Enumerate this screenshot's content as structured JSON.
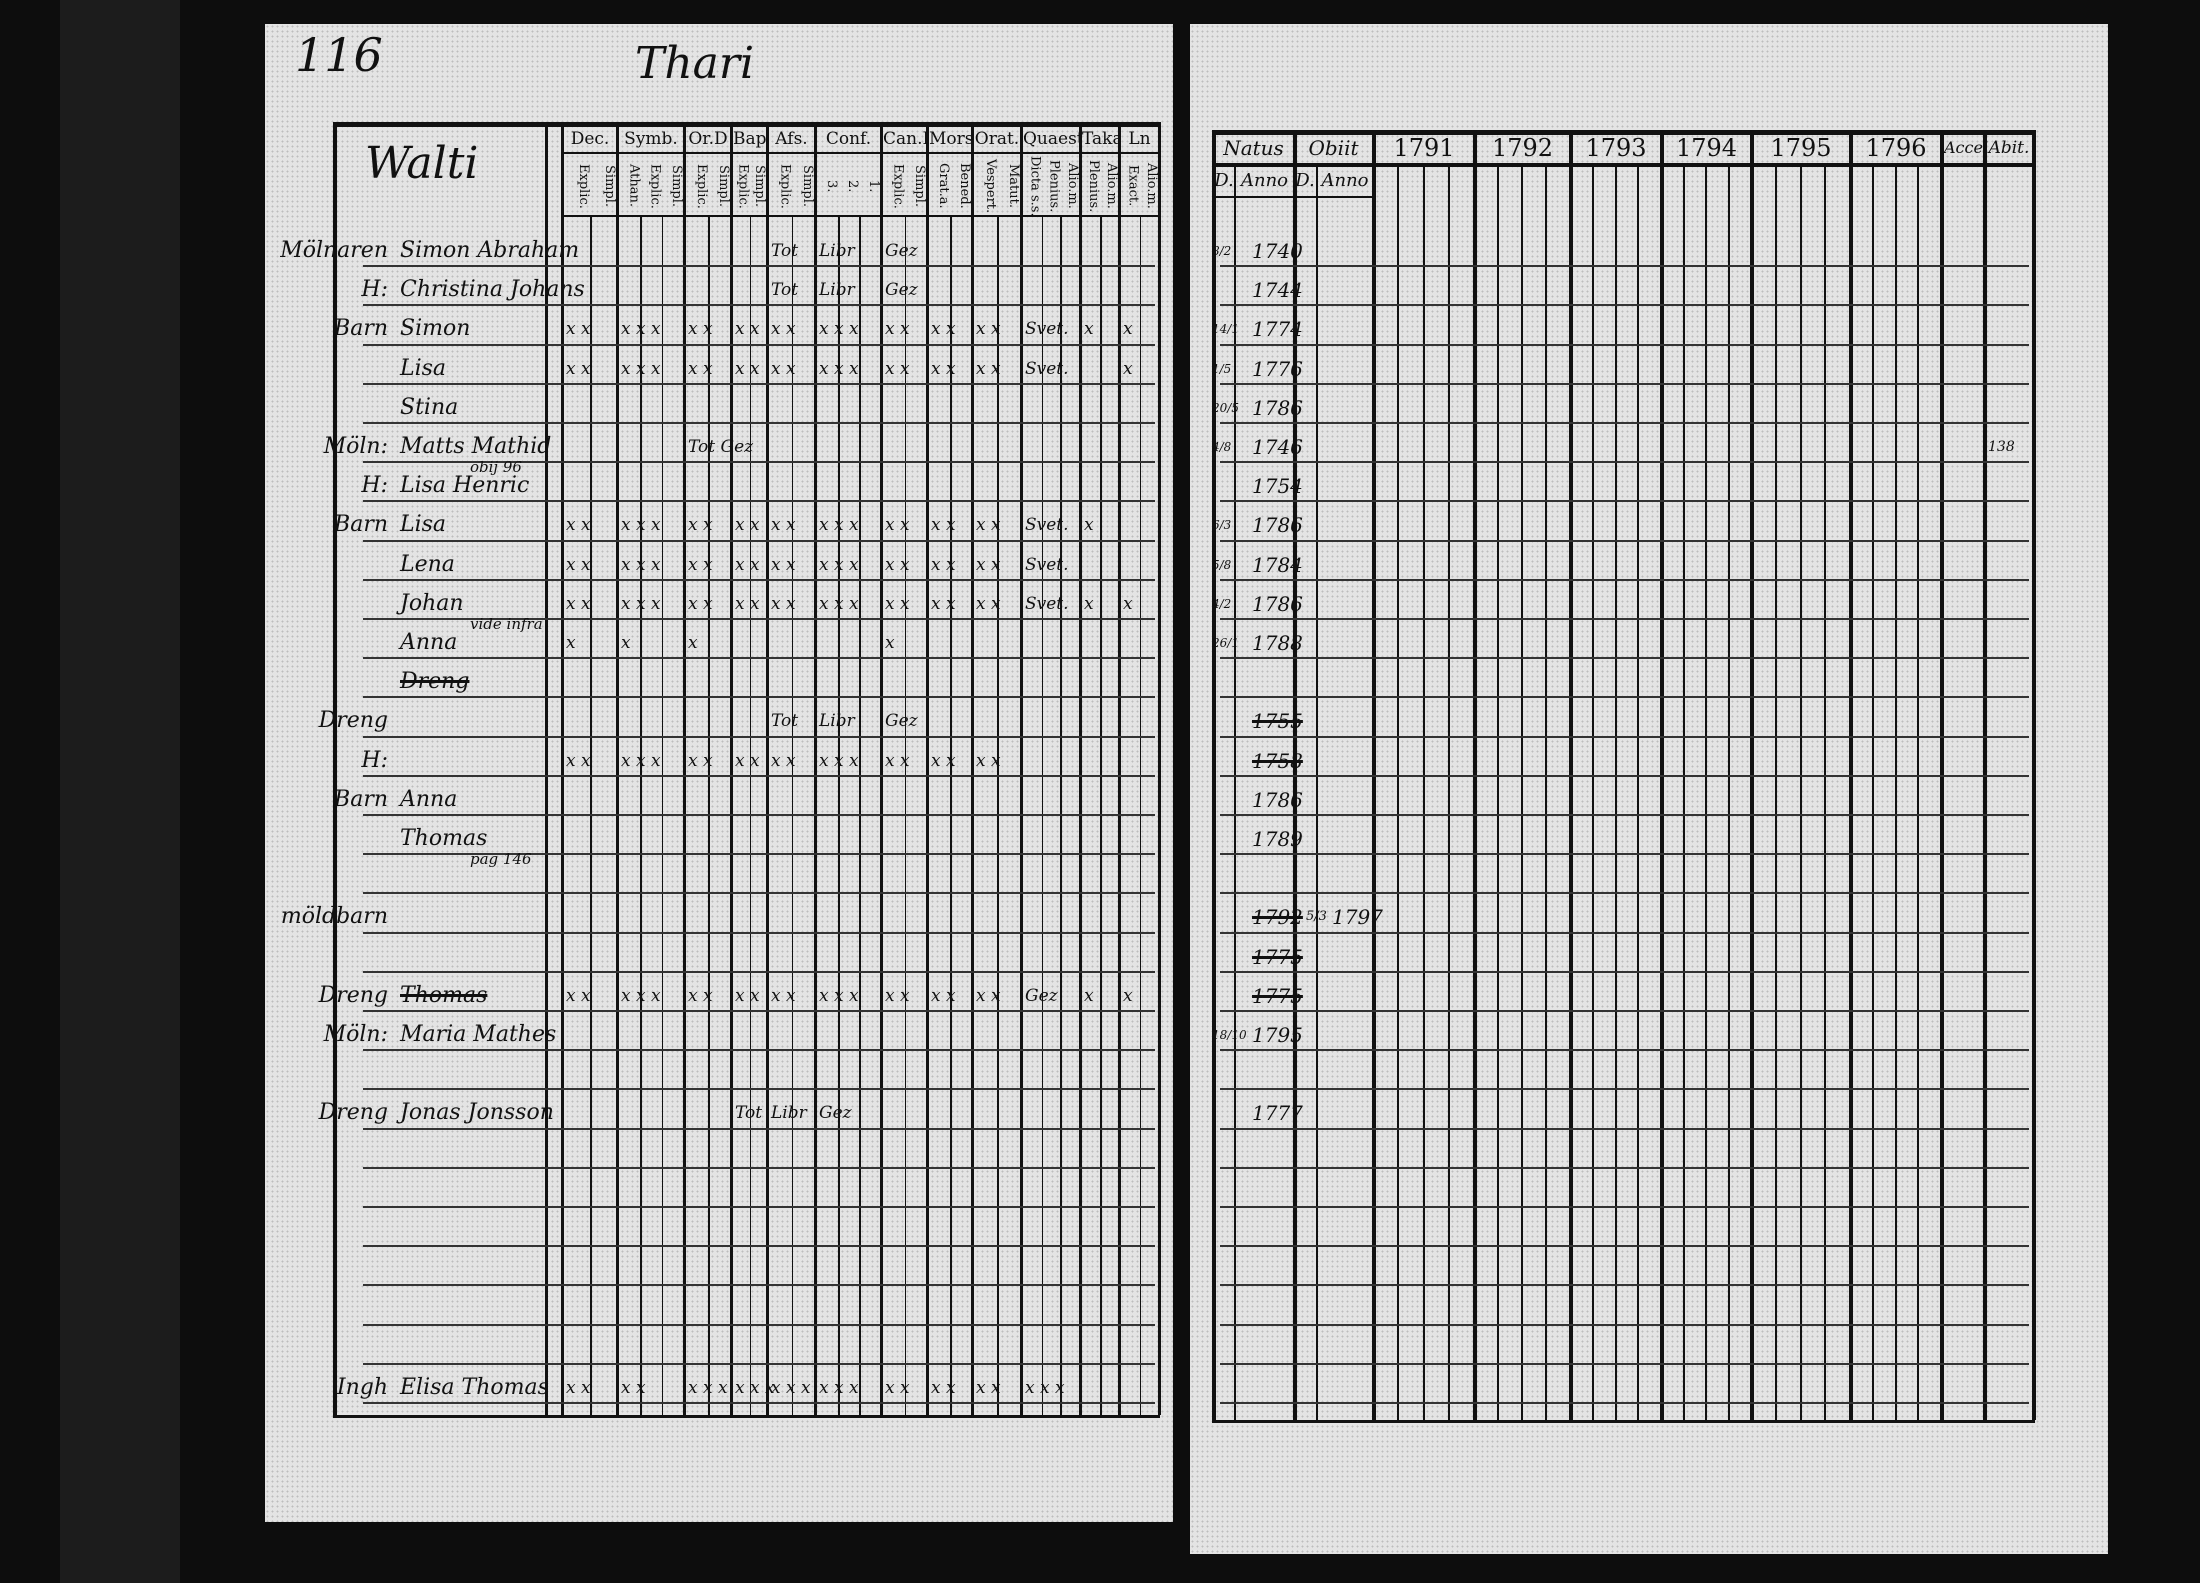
{
  "left_page": {
    "page_number": "116",
    "header_title": "Thari",
    "village": "Walti",
    "column_groups": [
      {
        "label": "Dec.",
        "sub": [
          "Explic.",
          "Simpl."
        ]
      },
      {
        "label": "Symb.",
        "sub": [
          "Athan.",
          "Explic.",
          "Simpl."
        ]
      },
      {
        "label": "Or.D",
        "sub": [
          "Explic.",
          "Simpl."
        ]
      },
      {
        "label": "Bapt.",
        "sub": [
          "Explic.",
          "Simpl."
        ]
      },
      {
        "label": "Afs.",
        "sub": [
          "Explic.",
          "Simpl."
        ]
      },
      {
        "label": "Conf.",
        "sub": [
          "3.",
          "2.",
          "1."
        ]
      },
      {
        "label": "Can.D",
        "sub": [
          "Explic.",
          "Simpl."
        ]
      },
      {
        "label": "Mors.",
        "sub": [
          "Grat.a.",
          "Bened."
        ]
      },
      {
        "label": "Orat.",
        "sub": [
          "Vespert.",
          "Matut."
        ]
      },
      {
        "label": "Quaest.",
        "sub": [
          "Dicta s.s.",
          "Plenius.",
          "Alio.m."
        ]
      },
      {
        "label": "Taka",
        "sub": [
          "Plenius.",
          "Alio.m."
        ]
      },
      {
        "label": "Ln",
        "sub": [
          "Exact.",
          "Alio.m."
        ]
      }
    ]
  },
  "right_page": {
    "headers": {
      "natus": "Natus",
      "obiit": "Obiit",
      "d": "D.",
      "anno": "Anno",
      "years": [
        "1791",
        "1792",
        "1793",
        "1794",
        "1795",
        "1796"
      ],
      "accel": "Accel",
      "abit": "Abit."
    }
  },
  "rows": [
    {
      "prefix": "Mölnaren",
      "name": "Simon Abraham",
      "marks": [
        "",
        "",
        "",
        "",
        "Tot",
        "Libr",
        "Gez"
      ],
      "natus_d": "8/2",
      "natus_anno": "1740"
    },
    {
      "prefix": "H:",
      "name": "Christina Johans",
      "marks": [
        "",
        "",
        "",
        "",
        "Tot",
        "Libr",
        "Gez"
      ],
      "natus_d": "",
      "natus_anno": "1744"
    },
    {
      "prefix": "Barn",
      "name": "Simon",
      "marks": [
        "x x",
        "x x x",
        "x x",
        "x x",
        "x x",
        "x x x",
        "x x",
        "x x",
        "x x",
        "Svet.",
        "x",
        "x"
      ],
      "natus_d": "14/1",
      "natus_anno": "1774"
    },
    {
      "prefix": "",
      "name": "Lisa",
      "marks": [
        "x x",
        "x x x",
        "x x",
        "x x",
        "x x",
        "x x x",
        "x x",
        "x x",
        "x x",
        "Svet.",
        "",
        "x"
      ],
      "natus_d": "1/5",
      "natus_anno": "1776"
    },
    {
      "prefix": "",
      "name": "Stina",
      "marks": [],
      "natus_d": "20/5",
      "natus_anno": "1786"
    },
    {
      "prefix": "Möln:",
      "name": "Matts Mathid",
      "marks": [
        "",
        "",
        "Tot Gez"
      ],
      "natus_d": "4/8",
      "natus_anno": "1746",
      "abit": "138"
    },
    {
      "prefix": "H:",
      "name": "Lisa Henric",
      "note": "obij 96",
      "marks": [],
      "natus_d": "",
      "natus_anno": "1754"
    },
    {
      "prefix": "Barn",
      "name": "Lisa",
      "marks": [
        "x x",
        "x x x",
        "x x",
        "x x",
        "x x",
        "x x x",
        "x x",
        "x x",
        "x x",
        "Svet.",
        "x",
        ""
      ],
      "natus_d": "6/3",
      "natus_anno": "1786"
    },
    {
      "prefix": "",
      "name": "Lena",
      "marks": [
        "x x",
        "x x x",
        "x x",
        "x x",
        "x x",
        "x x x",
        "x x",
        "x x",
        "x x",
        "Svet.",
        "",
        ""
      ],
      "natus_d": "5/8",
      "natus_anno": "1784"
    },
    {
      "prefix": "",
      "name": "Johan",
      "marks": [
        "x x",
        "x x x",
        "x x",
        "x x",
        "x x",
        "x x x",
        "x x",
        "x x",
        "x x",
        "Svet.",
        "x",
        "x"
      ],
      "natus_d": "4/2",
      "natus_anno": "1786"
    },
    {
      "prefix": "",
      "name": "Anna",
      "note": "vide infra",
      "marks": [
        "x",
        "x",
        "x",
        "",
        "",
        "",
        "x"
      ],
      "natus_d": "26/1",
      "natus_anno": "1788"
    },
    {
      "prefix": "",
      "name": "Dreng",
      "struck": true,
      "marks": [],
      "natus_d": "",
      "natus_anno": ""
    },
    {
      "prefix": "Dreng",
      "name": "",
      "struck": true,
      "marks": [
        "",
        "",
        "",
        "",
        "Tot",
        "Libr",
        "Gez"
      ],
      "natus_d": "",
      "natus_anno": "1755"
    },
    {
      "prefix": "H:",
      "name": "",
      "struck": true,
      "marks": [
        "x x",
        "x x x",
        "x x",
        "x x",
        "x x",
        "x x x",
        "x x",
        "x x",
        "x x"
      ],
      "natus_d": "",
      "natus_anno": "1758"
    },
    {
      "prefix": "Barn",
      "name": "Anna",
      "marks": [],
      "natus_d": "",
      "natus_anno": "1786"
    },
    {
      "prefix": "",
      "name": "Thomas",
      "marks": [],
      "natus_d": "",
      "natus_anno": "1789"
    },
    {
      "prefix": "",
      "name": "",
      "struck": true,
      "note": "pag 146",
      "marks": [],
      "natus_d": "",
      "natus_anno": ""
    },
    {
      "prefix": "möldbarn",
      "name": "",
      "struck": true,
      "marks": [],
      "natus_d": "",
      "natus_anno": "1792",
      "obiit_d": "5/3",
      "obiit_anno": "1797"
    },
    {
      "prefix": "",
      "name": "",
      "struck": true,
      "marks": [],
      "natus_d": "",
      "natus_anno": "1775"
    },
    {
      "prefix": "Dreng",
      "name": "Thomas",
      "struck": true,
      "marks": [
        "x x",
        "x x x",
        "x x",
        "x x",
        "x x",
        "x x x",
        "x x",
        "x x",
        "x x",
        "Gez",
        "x",
        "x"
      ],
      "natus_d": "",
      "natus_anno": "1775"
    },
    {
      "prefix": "Möln:",
      "name": "Maria Mathes",
      "marks": [],
      "natus_d": "18/10",
      "natus_anno": "1795"
    },
    {
      "prefix": "",
      "name": "",
      "marks": [],
      "natus_d": "",
      "natus_anno": ""
    },
    {
      "prefix": "Dreng",
      "name": "Jonas Jonsson",
      "marks": [
        "",
        "",
        "",
        "Tot",
        "Libr",
        "Gez"
      ],
      "natus_d": "",
      "natus_anno": "1777"
    },
    {
      "prefix": "",
      "name": "",
      "marks": [],
      "natus_d": "",
      "natus_anno": ""
    },
    {
      "prefix": "",
      "name": "",
      "marks": [],
      "natus_d": "",
      "natus_anno": ""
    },
    {
      "prefix": "",
      "name": "",
      "marks": [],
      "natus_d": "",
      "natus_anno": ""
    },
    {
      "prefix": "",
      "name": "",
      "marks": [],
      "natus_d": "",
      "natus_anno": ""
    },
    {
      "prefix": "",
      "name": "",
      "marks": [],
      "natus_d": "",
      "natus_anno": ""
    },
    {
      "prefix": "",
      "name": "",
      "marks": [],
      "natus_d": "",
      "natus_anno": ""
    },
    {
      "prefix": "Ingh",
      "name": "Elisa Thomas",
      "marks": [
        "x x",
        "x x",
        "x x x",
        "x x x",
        "x x x",
        "x x x",
        "x x",
        "x x",
        "x x",
        "x x x"
      ],
      "natus_d": "",
      "natus_anno": ""
    }
  ]
}
